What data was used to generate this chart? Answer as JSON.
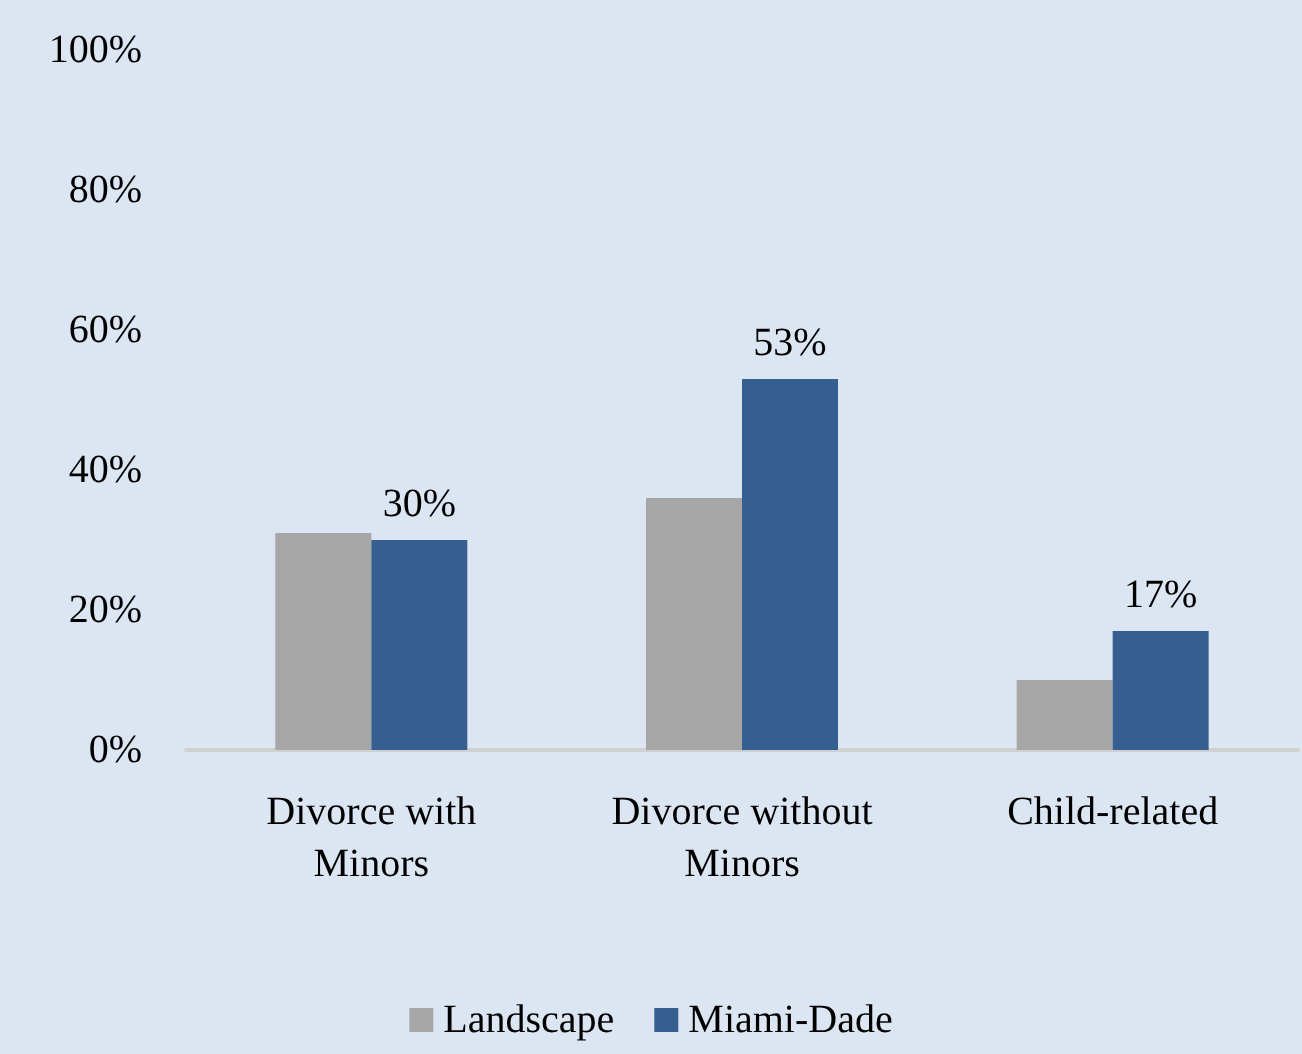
{
  "chart_data": {
    "type": "bar",
    "categories": [
      "Divorce with\nMinors",
      "Divorce without\nMinors",
      "Child-related"
    ],
    "series": [
      {
        "name": "Landscape",
        "color": "#a6a6a6",
        "values": [
          31,
          36,
          10
        ]
      },
      {
        "name": "Miami-Dade",
        "color": "#355f91",
        "values": [
          30,
          53,
          17
        ],
        "value_labels": [
          "30%",
          "53%",
          "17%"
        ]
      }
    ],
    "ylim": [
      0,
      100
    ],
    "yticks": [
      {
        "value": 0,
        "label": "0%"
      },
      {
        "value": 20,
        "label": "20%"
      },
      {
        "value": 40,
        "label": "40%"
      },
      {
        "value": 60,
        "label": "60%"
      },
      {
        "value": 80,
        "label": "80%"
      },
      {
        "value": 100,
        "label": "100%"
      }
    ],
    "grid": false,
    "legend": "bottom"
  }
}
